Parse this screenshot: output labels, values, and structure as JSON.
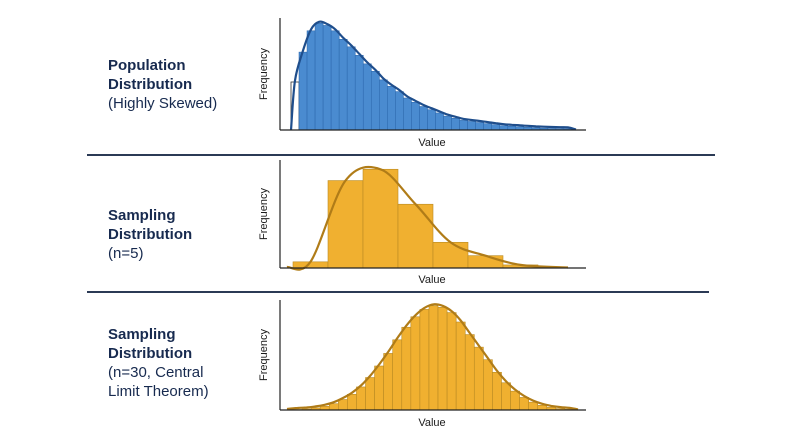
{
  "panels": [
    {
      "title_lines": [
        "Population",
        "Distribution"
      ],
      "subtitle_lines": [
        "(Highly Skewed)"
      ]
    },
    {
      "title_lines": [
        "Sampling",
        "Distribution"
      ],
      "subtitle_lines": [
        "(n=5)"
      ]
    },
    {
      "title_lines": [
        "Sampling",
        "Distribution"
      ],
      "subtitle_lines": [
        "(n=30, Central",
        "Limit Theorem)"
      ]
    }
  ],
  "colors": {
    "blue_fill": "#4a8bd0",
    "blue_line": "#1f4e8c",
    "orange_fill": "#f0b030",
    "orange_line": "#b07c18",
    "axis": "#222222",
    "divider": "#2b3a55"
  },
  "chart_data": [
    {
      "type": "bar",
      "xlabel": "Value",
      "ylabel": "Frequency",
      "values": [
        0.45,
        0.73,
        0.93,
        1.0,
        0.98,
        0.93,
        0.85,
        0.78,
        0.7,
        0.62,
        0.55,
        0.47,
        0.41,
        0.36,
        0.3,
        0.26,
        0.22,
        0.19,
        0.16,
        0.13,
        0.11,
        0.09,
        0.08,
        0.07,
        0.06,
        0.05,
        0.04,
        0.035,
        0.03,
        0.025,
        0.02,
        0.017,
        0.014,
        0.012,
        0.01
      ],
      "first_bar_outlined": true,
      "curve": "skewed",
      "ylim": [
        0,
        1.05
      ]
    },
    {
      "type": "bar",
      "xlabel": "Value",
      "ylabel": "Frequency",
      "values": [
        0.06,
        0.85,
        0.96,
        0.62,
        0.25,
        0.12,
        0.03
      ],
      "curve": "skewed-moderate",
      "ylim": [
        0,
        1.05
      ]
    },
    {
      "type": "bar",
      "xlabel": "Value",
      "ylabel": "Frequency",
      "values": [
        0.005,
        0.01,
        0.02,
        0.035,
        0.06,
        0.1,
        0.15,
        0.22,
        0.31,
        0.42,
        0.54,
        0.67,
        0.79,
        0.89,
        0.96,
        0.995,
        0.98,
        0.93,
        0.84,
        0.72,
        0.6,
        0.48,
        0.36,
        0.26,
        0.18,
        0.12,
        0.075,
        0.045,
        0.025,
        0.013,
        0.006
      ],
      "curve": "normal",
      "ylim": [
        0,
        1.05
      ]
    }
  ]
}
